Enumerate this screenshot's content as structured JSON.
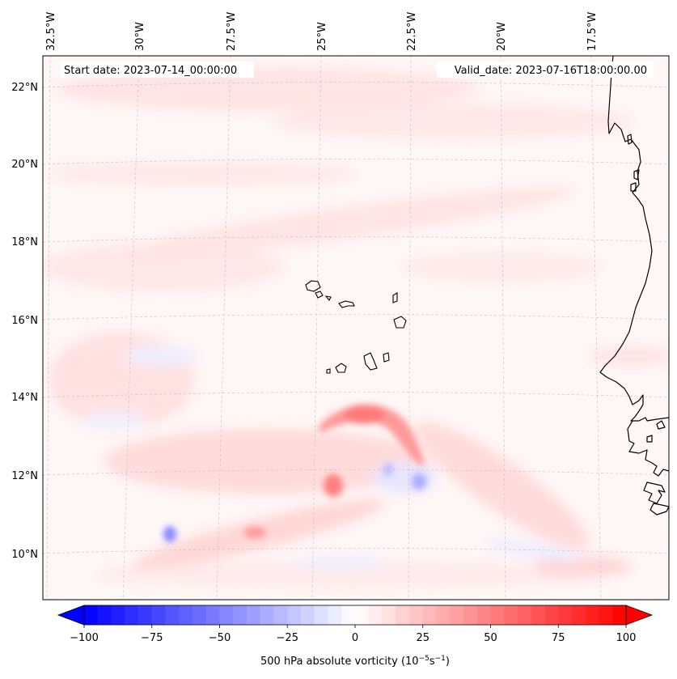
{
  "map": {
    "start_label": "Start date: 2023-07-14_00:00:00",
    "valid_label": "Valid_date: 2023-07-16T18:00:00.00",
    "lon_labels": [
      "32.5°W",
      "30°W",
      "27.5°W",
      "25°W",
      "22.5°W",
      "20°W",
      "17.5°W"
    ],
    "lat_labels": [
      "22°N",
      "20°N",
      "18°N",
      "16°N",
      "14°N",
      "12°N",
      "10°N"
    ]
  },
  "colorbar": {
    "title_main": "500 hPa absolute vorticity (10",
    "title_exp1": "−5",
    "title_mid": "s",
    "title_exp2": "−1",
    "title_end": ")",
    "tick_labels": [
      "−100",
      "−75",
      "−50",
      "−25",
      "0",
      "25",
      "50",
      "75",
      "100"
    ],
    "vmin": -100,
    "vmax": 100,
    "levels": 40,
    "colors": {
      "min": "#0000ff",
      "mid": "#ffffff",
      "max": "#ff0000"
    }
  }
}
